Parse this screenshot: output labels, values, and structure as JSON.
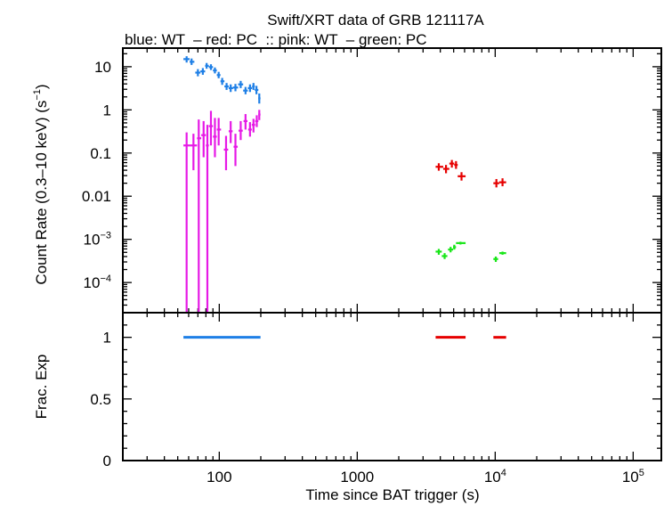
{
  "chart_data": {
    "type": "scatter",
    "title": "Swift/XRT data of GRB 121117A",
    "subtitle": "blue: WT  – red: PC  :: pink: WT  – green: PC",
    "xlabel": "Time since BAT trigger (s)",
    "x_scale": "log",
    "xlim": [
      20,
      160000
    ],
    "x_ticks": [
      {
        "label": "100",
        "value": 100
      },
      {
        "label": "1000",
        "value": 1000
      },
      {
        "label": "10",
        "sup": "4",
        "value": 10000
      },
      {
        "label": "10",
        "sup": "5",
        "value": 100000
      }
    ],
    "panels": [
      {
        "name": "rate",
        "ylabel": "Count Rate (0.3–10 keV) (s",
        "ylabel_sup": "−1",
        "ylabel_tail": ")",
        "y_scale": "log",
        "ylim": [
          2e-05,
          27
        ],
        "y_ticks": [
          {
            "label": "10",
            "value": 10
          },
          {
            "label": "1",
            "value": 1
          },
          {
            "label": "0.1",
            "value": 0.1
          },
          {
            "label": "0.01",
            "value": 0.01
          },
          {
            "label": "10",
            "sup": "−3",
            "value": 0.001
          },
          {
            "label": "10",
            "sup": "−4",
            "value": 0.0001
          }
        ],
        "series": [
          {
            "name": "WT",
            "color": "#1e7fe6",
            "points": [
              {
                "x": 58,
                "x_lo": 55,
                "x_hi": 61,
                "y": 15,
                "y_lo": 12.5,
                "y_hi": 17.5
              },
              {
                "x": 63,
                "x_lo": 61,
                "x_hi": 66,
                "y": 13,
                "y_lo": 11,
                "y_hi": 15.5
              },
              {
                "x": 70,
                "x_lo": 67,
                "x_hi": 73,
                "y": 7.3,
                "y_lo": 6,
                "y_hi": 8.8
              },
              {
                "x": 76,
                "x_lo": 73,
                "x_hi": 79,
                "y": 7.8,
                "y_lo": 6.5,
                "y_hi": 9.3
              },
              {
                "x": 81,
                "x_lo": 79,
                "x_hi": 84,
                "y": 10.5,
                "y_lo": 9,
                "y_hi": 12.2
              },
              {
                "x": 87,
                "x_lo": 84,
                "x_hi": 90,
                "y": 9.8,
                "y_lo": 8.4,
                "y_hi": 11.4
              },
              {
                "x": 93,
                "x_lo": 90,
                "x_hi": 96,
                "y": 8.2,
                "y_lo": 7,
                "y_hi": 9.6
              },
              {
                "x": 99,
                "x_lo": 96,
                "x_hi": 102,
                "y": 6.4,
                "y_lo": 5.4,
                "y_hi": 7.6
              },
              {
                "x": 105,
                "x_lo": 102,
                "x_hi": 109,
                "y": 4.6,
                "y_lo": 3.8,
                "y_hi": 5.5
              },
              {
                "x": 113,
                "x_lo": 109,
                "x_hi": 117,
                "y": 3.5,
                "y_lo": 2.9,
                "y_hi": 4.2
              },
              {
                "x": 121,
                "x_lo": 117,
                "x_hi": 126,
                "y": 3.2,
                "y_lo": 2.6,
                "y_hi": 3.9
              },
              {
                "x": 131,
                "x_lo": 126,
                "x_hi": 137,
                "y": 3.3,
                "y_lo": 2.7,
                "y_hi": 4.0
              },
              {
                "x": 143,
                "x_lo": 137,
                "x_hi": 149,
                "y": 3.9,
                "y_lo": 3.2,
                "y_hi": 4.7
              },
              {
                "x": 155,
                "x_lo": 149,
                "x_hi": 161,
                "y": 2.8,
                "y_lo": 2.3,
                "y_hi": 3.4
              },
              {
                "x": 167,
                "x_lo": 161,
                "x_hi": 173,
                "y": 3.2,
                "y_lo": 2.6,
                "y_hi": 3.9
              },
              {
                "x": 177,
                "x_lo": 173,
                "x_hi": 181,
                "y": 3.5,
                "y_lo": 2.9,
                "y_hi": 4.2
              },
              {
                "x": 186,
                "x_lo": 181,
                "x_hi": 192,
                "y": 2.9,
                "y_lo": 2.3,
                "y_hi": 3.6
              },
              {
                "x": 195,
                "x_lo": 192,
                "x_hi": 199,
                "y": 1.85,
                "y_lo": 1.4,
                "y_hi": 2.4
              }
            ]
          },
          {
            "name": "WT",
            "color": "#e619e6",
            "points": [
              {
                "x": 58,
                "x_lo": 55,
                "x_hi": 61,
                "y": 0.15,
                "y_lo": 2e-05,
                "y_hi": 0.3
              },
              {
                "x": 65,
                "x_lo": 61,
                "x_hi": 69,
                "y": 0.15,
                "y_lo": 0.04,
                "y_hi": 0.28
              },
              {
                "x": 71,
                "x_lo": 69,
                "x_hi": 74,
                "y": 0.22,
                "y_lo": 2e-05,
                "y_hi": 0.6
              },
              {
                "x": 77,
                "x_lo": 74,
                "x_hi": 80,
                "y": 0.26,
                "y_lo": 0.08,
                "y_hi": 0.55
              },
              {
                "x": 82,
                "x_lo": 80,
                "x_hi": 84,
                "y": 0.15,
                "y_lo": 2e-05,
                "y_hi": 0.45
              },
              {
                "x": 87,
                "x_lo": 84,
                "x_hi": 90,
                "y": 0.42,
                "y_lo": 0.15,
                "y_hi": 0.95
              },
              {
                "x": 93,
                "x_lo": 90,
                "x_hi": 96,
                "y": 0.24,
                "y_lo": 0.08,
                "y_hi": 0.65
              },
              {
                "x": 99,
                "x_lo": 96,
                "x_hi": 103,
                "y": 0.35,
                "y_lo": 0.15,
                "y_hi": 0.65
              },
              {
                "x": 112,
                "x_lo": 108,
                "x_hi": 116,
                "y": 0.12,
                "y_lo": 0.04,
                "y_hi": 0.25
              },
              {
                "x": 121,
                "x_lo": 117,
                "x_hi": 125,
                "y": 0.32,
                "y_lo": 0.17,
                "y_hi": 0.55
              },
              {
                "x": 131,
                "x_lo": 127,
                "x_hi": 136,
                "y": 0.14,
                "y_lo": 0.05,
                "y_hi": 0.28
              },
              {
                "x": 143,
                "x_lo": 138,
                "x_hi": 148,
                "y": 0.33,
                "y_lo": 0.2,
                "y_hi": 0.55
              },
              {
                "x": 155,
                "x_lo": 150,
                "x_hi": 160,
                "y": 0.55,
                "y_lo": 0.35,
                "y_hi": 0.8
              },
              {
                "x": 167,
                "x_lo": 162,
                "x_hi": 172,
                "y": 0.35,
                "y_lo": 0.24,
                "y_hi": 0.52
              },
              {
                "x": 177,
                "x_lo": 172,
                "x_hi": 182,
                "y": 0.45,
                "y_lo": 0.3,
                "y_hi": 0.62
              },
              {
                "x": 187,
                "x_lo": 182,
                "x_hi": 192,
                "y": 0.55,
                "y_lo": 0.4,
                "y_hi": 0.75
              },
              {
                "x": 195,
                "x_lo": 192,
                "x_hi": 199,
                "y": 0.78,
                "y_lo": 0.58,
                "y_hi": 1.0
              }
            ]
          },
          {
            "name": "PC",
            "color": "#e60000",
            "points": [
              {
                "x": 3900,
                "x_lo": 3700,
                "x_hi": 4200,
                "y": 0.048,
                "y_lo": 0.039,
                "y_hi": 0.058
              },
              {
                "x": 4400,
                "x_lo": 4200,
                "x_hi": 4650,
                "y": 0.043,
                "y_lo": 0.034,
                "y_hi": 0.053
              },
              {
                "x": 4850,
                "x_lo": 4650,
                "x_hi": 5050,
                "y": 0.057,
                "y_lo": 0.046,
                "y_hi": 0.069
              },
              {
                "x": 5200,
                "x_lo": 5050,
                "x_hi": 5350,
                "y": 0.053,
                "y_lo": 0.043,
                "y_hi": 0.065
              },
              {
                "x": 5700,
                "x_lo": 5350,
                "x_hi": 6100,
                "y": 0.029,
                "y_lo": 0.023,
                "y_hi": 0.036
              },
              {
                "x": 10200,
                "x_lo": 9700,
                "x_hi": 10700,
                "y": 0.02,
                "y_lo": 0.016,
                "y_hi": 0.025
              },
              {
                "x": 11300,
                "x_lo": 10700,
                "x_hi": 12000,
                "y": 0.021,
                "y_lo": 0.017,
                "y_hi": 0.026
              }
            ]
          },
          {
            "name": "PC",
            "color": "#19e619",
            "points": [
              {
                "x": 3900,
                "x_lo": 3700,
                "x_hi": 4100,
                "y": 0.00052,
                "y_lo": 0.00044,
                "y_hi": 0.0006
              },
              {
                "x": 4300,
                "x_lo": 4100,
                "x_hi": 4500,
                "y": 0.00041,
                "y_lo": 0.00035,
                "y_hi": 0.00048
              },
              {
                "x": 4750,
                "x_lo": 4550,
                "x_hi": 4950,
                "y": 0.00058,
                "y_lo": 0.0005,
                "y_hi": 0.00067
              },
              {
                "x": 5050,
                "x_lo": 4950,
                "x_hi": 5200,
                "y": 0.00066,
                "y_lo": 0.00058,
                "y_hi": 0.00075
              },
              {
                "x": 5600,
                "x_lo": 5200,
                "x_hi": 6100,
                "y": 0.00082,
                "y_lo": 0.00076,
                "y_hi": 0.00088
              },
              {
                "x": 10100,
                "x_lo": 9700,
                "x_hi": 10500,
                "y": 0.00035,
                "y_lo": 0.0003,
                "y_hi": 0.0004
              },
              {
                "x": 11300,
                "x_lo": 10700,
                "x_hi": 12000,
                "y": 0.00048,
                "y_lo": 0.00044,
                "y_hi": 0.00052
              }
            ]
          }
        ]
      },
      {
        "name": "frac_exp",
        "ylabel": "Frac. Exp",
        "y_scale": "linear",
        "ylim": [
          0,
          1.2
        ],
        "y_ticks": [
          {
            "label": "1",
            "value": 1
          },
          {
            "label": "0.5",
            "value": 0.5
          },
          {
            "label": "0",
            "value": 0
          }
        ],
        "segments": [
          {
            "color": "#1e7fe6",
            "x_start": 55,
            "x_end": 199,
            "y": 1
          },
          {
            "color": "#e60000",
            "x_start": 3700,
            "x_end": 6100,
            "y": 1
          },
          {
            "color": "#e60000",
            "x_start": 9700,
            "x_end": 12000,
            "y": 1
          }
        ]
      }
    ]
  }
}
